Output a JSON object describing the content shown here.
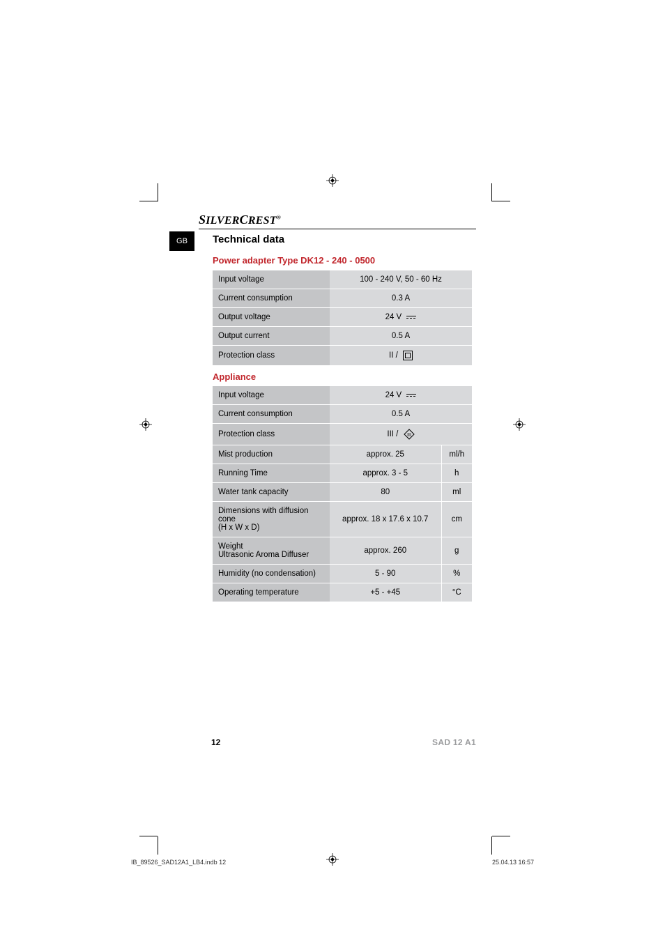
{
  "brand": "SilverCrest",
  "brand_reg": "®",
  "lang_tab": "GB",
  "section_title": "Technical data",
  "adapter_header": "Power adapter Type DK12 - 240 - 0500",
  "appliance_header": "Appliance",
  "adapter_rows": [
    {
      "label": "Input voltage",
      "value": "100 - 240 V, 50 - 60 Hz"
    },
    {
      "label": "Current consumption",
      "value": "0.3 A"
    },
    {
      "label": "Output voltage",
      "value": "24 V",
      "dc": true
    },
    {
      "label": "Output current",
      "value": "0.5 A"
    },
    {
      "label": "Protection class",
      "value": "II /",
      "class2": true
    }
  ],
  "appliance_rows": [
    {
      "label": "Input voltage",
      "value": "24 V",
      "dc": true
    },
    {
      "label": "Current consumption",
      "value": "0.5 A"
    },
    {
      "label": "Protection class",
      "value": "III /",
      "class3": true
    },
    {
      "label": "Mist production",
      "value": "approx. 25",
      "unit": "ml/h"
    },
    {
      "label": "Running Time",
      "value": "approx. 3 - 5",
      "unit": "h"
    },
    {
      "label": "Water tank capacity",
      "value": "80",
      "unit": "ml"
    },
    {
      "label": "Dimensions with diffusion cone\n(H x W x D)",
      "value": "approx. 18 x 17.6 x 10.7",
      "unit": "cm"
    },
    {
      "label": "Weight\nUltrasonic Aroma Diffuser",
      "value": "approx. 260",
      "unit": "g"
    },
    {
      "label": "Humidity (no condensation)",
      "value": "5 - 90",
      "unit": "%"
    },
    {
      "label": "Operating temperature",
      "value": "+5 - +45",
      "unit": "°C"
    }
  ],
  "page_number": "12",
  "model": "SAD 12 A1",
  "print_file": "IB_89526_SAD12A1_LB4.indb   12",
  "print_date": "25.04.13   16:57",
  "colors": {
    "accent": "#c1262c",
    "row_label_bg": "#c4c5c7",
    "row_value_bg": "#d8d9db"
  }
}
